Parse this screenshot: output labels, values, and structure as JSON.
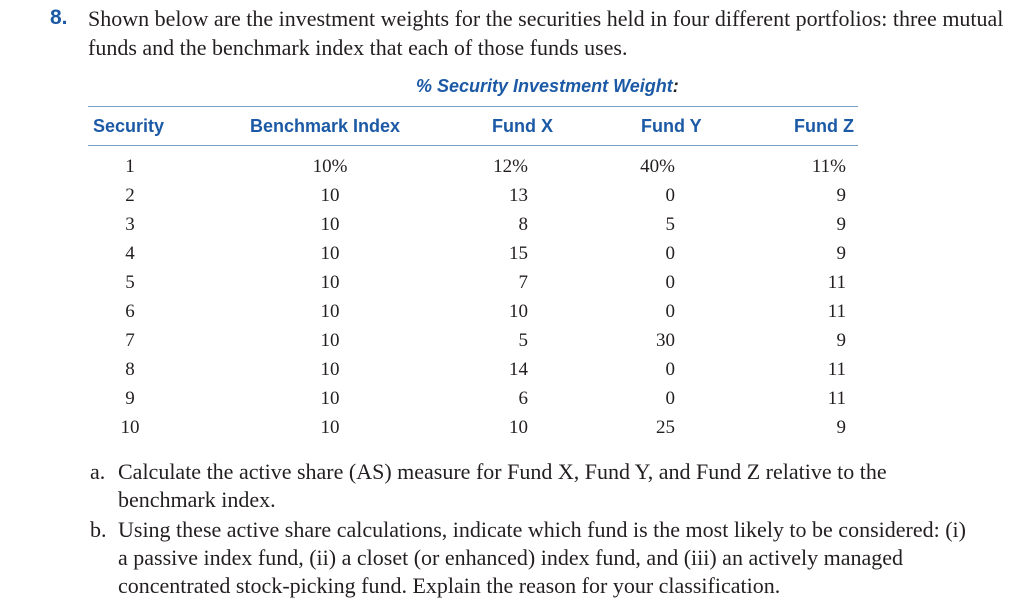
{
  "problem": {
    "number": "8.",
    "intro": "Shown below are the investment weights for the securities held in four different portfolios: three mutual funds and the benchmark index that each of those funds uses."
  },
  "table": {
    "title": "% Security Investment Weight",
    "title_suffix": ":",
    "headers": {
      "security": "Security",
      "benchmark": "Benchmark Index",
      "fund_x": "Fund X",
      "fund_y": "Fund Y",
      "fund_z": "Fund Z"
    },
    "rows": [
      {
        "security": "1",
        "benchmark": "10%",
        "fund_x": "12%",
        "fund_y": "40%",
        "fund_z": "11%"
      },
      {
        "security": "2",
        "benchmark": "10",
        "fund_x": "13",
        "fund_y": "0",
        "fund_z": "9"
      },
      {
        "security": "3",
        "benchmark": "10",
        "fund_x": "8",
        "fund_y": "5",
        "fund_z": "9"
      },
      {
        "security": "4",
        "benchmark": "10",
        "fund_x": "15",
        "fund_y": "0",
        "fund_z": "9"
      },
      {
        "security": "5",
        "benchmark": "10",
        "fund_x": "7",
        "fund_y": "0",
        "fund_z": "11"
      },
      {
        "security": "6",
        "benchmark": "10",
        "fund_x": "10",
        "fund_y": "0",
        "fund_z": "11"
      },
      {
        "security": "7",
        "benchmark": "10",
        "fund_x": "5",
        "fund_y": "30",
        "fund_z": "9"
      },
      {
        "security": "8",
        "benchmark": "10",
        "fund_x": "14",
        "fund_y": "0",
        "fund_z": "11"
      },
      {
        "security": "9",
        "benchmark": "10",
        "fund_x": "6",
        "fund_y": "0",
        "fund_z": "11"
      },
      {
        "security": "10",
        "benchmark": "10",
        "fund_x": "10",
        "fund_y": "25",
        "fund_z": "9"
      }
    ]
  },
  "parts": [
    {
      "label": "a.",
      "text": "Calculate the active share (AS) measure for Fund X, Fund Y, and Fund Z relative to the benchmark index."
    },
    {
      "label": "b.",
      "text": "Using these active share calculations, indicate which fund is the most likely to be consid­ered: (i) a passive index fund, (ii) a closet (or enhanced) index fund, and (iii) an actively managed concentrated stock-picking fund. Explain the reason for your classification."
    }
  ]
}
